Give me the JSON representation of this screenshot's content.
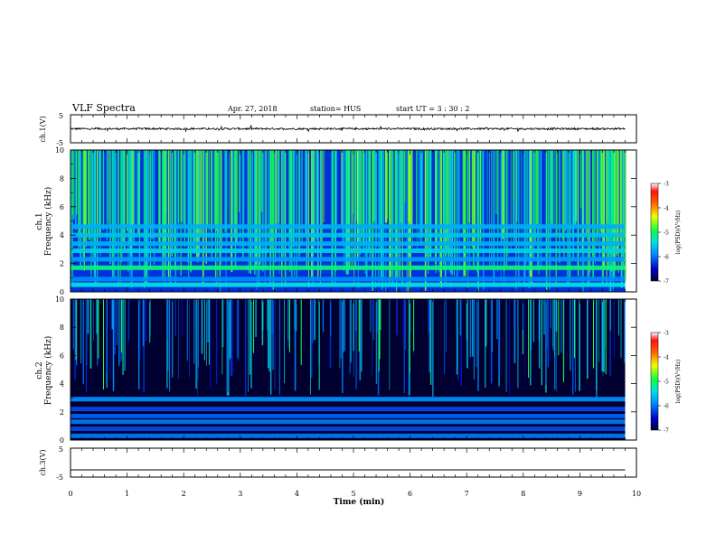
{
  "header": {
    "title": "VLF Spectra",
    "date": "Apr. 27, 2018",
    "station": "station= HUS",
    "start_ut": "start  UT  =   3  : 30 : 2"
  },
  "chart_data": [
    {
      "type": "line",
      "panel": "ch1_waveform",
      "ylabel": "ch.1(V)",
      "ylim": [
        -5,
        5
      ],
      "yticks": [
        "5",
        "-5"
      ],
      "xlim": [
        0,
        10
      ],
      "series": [
        {
          "baseline": 0,
          "noise_amplitude": 0.35,
          "x_end": 9.8
        }
      ]
    },
    {
      "type": "heatmap",
      "panel": "ch1_spectrogram",
      "ylabel": "ch.1\nFrequency (kHz)",
      "ylim": [
        0,
        10
      ],
      "yticks": [
        "0",
        "2",
        "4",
        "6",
        "8",
        "10"
      ],
      "xlim": [
        0,
        10
      ],
      "x_end": 9.8,
      "colorbar": {
        "label": "log(PSD)(V²/Hz)",
        "ticks": [
          "-3",
          "-4",
          "-5",
          "-6",
          "-7"
        ],
        "range": [
          -7,
          -3
        ]
      },
      "background_psd": -6.3,
      "bands_khz": [
        {
          "f": 0.5,
          "psd": -5.4
        },
        {
          "f": 0.9,
          "psd": -5.9
        },
        {
          "f": 1.7,
          "psd": -5.1
        },
        {
          "f": 2.3,
          "psd": -5.8
        },
        {
          "f": 2.9,
          "psd": -5.5
        },
        {
          "f": 3.4,
          "psd": -5.7
        },
        {
          "f": 4.0,
          "psd": -5.6
        },
        {
          "f": 4.6,
          "psd": -5.7
        }
      ],
      "sferic_density": 0.9
    },
    {
      "type": "heatmap",
      "panel": "ch2_spectrogram",
      "ylabel": "ch.2\nFrequency (kHz)",
      "ylim": [
        0,
        10
      ],
      "yticks": [
        "0",
        "2",
        "4",
        "6",
        "8",
        "10"
      ],
      "xlim": [
        0,
        10
      ],
      "x_end": 9.8,
      "colorbar": {
        "label": "log(PSD)(V²/Hz)",
        "ticks": [
          "-3",
          "-4",
          "-5",
          "-6",
          "-7"
        ],
        "range": [
          -7,
          -3
        ]
      },
      "background_psd": -7.0,
      "bands_khz": [
        {
          "f": 0.3,
          "psd": -6.0
        },
        {
          "f": 0.8,
          "psd": -6.2
        },
        {
          "f": 1.3,
          "psd": -6.0
        },
        {
          "f": 1.7,
          "psd": -6.1
        },
        {
          "f": 2.2,
          "psd": -6.2
        },
        {
          "f": 2.9,
          "psd": -5.9
        }
      ],
      "sferic_density": 0.35
    },
    {
      "type": "line",
      "panel": "ch3_waveform",
      "ylabel": "ch.3(V)",
      "ylim": [
        -5,
        5
      ],
      "yticks": [
        "5",
        "-5"
      ],
      "xlim": [
        0,
        10
      ],
      "xlabel": "Time  (min)",
      "xticks": [
        "0",
        "1",
        "2",
        "3",
        "4",
        "5",
        "6",
        "7",
        "8",
        "9",
        "10"
      ],
      "series": [
        {
          "baseline": -2.5,
          "noise_amplitude": 0,
          "x_end": 9.8
        }
      ]
    }
  ]
}
